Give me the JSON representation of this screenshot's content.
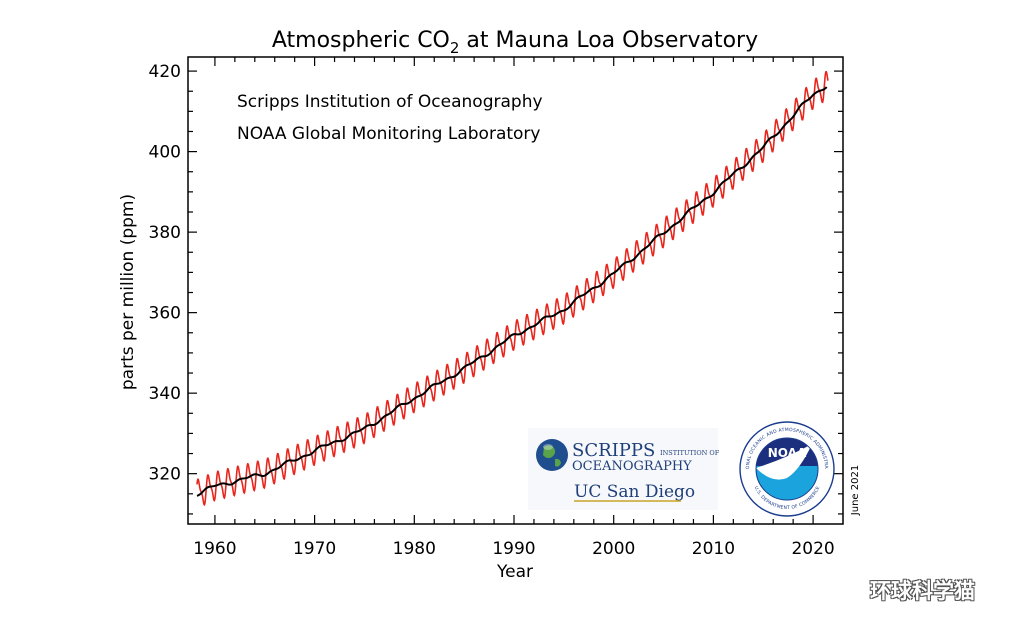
{
  "chart_data": {
    "type": "line",
    "title_prefix": "Atmospheric CO",
    "title_subscript": "2",
    "title_suffix": " at Mauna Loa Observatory",
    "xlabel": "Year",
    "ylabel": "parts per million (ppm)",
    "xlim": [
      1957.3,
      2023.0
    ],
    "ylim": [
      307.5,
      423.5
    ],
    "x_ticks": [
      1960,
      1970,
      1980,
      1990,
      2000,
      2010,
      2020
    ],
    "y_ticks": [
      320,
      340,
      360,
      380,
      400,
      420
    ],
    "grid": false,
    "series": [
      {
        "key": "monthly",
        "color": "#e8261d",
        "seasonal_amplitude_ppm": 3.0,
        "x_range": [
          1958.2,
          2021.5
        ]
      },
      {
        "key": "trend",
        "color": "#000000",
        "x": [
          1958.2,
          1960,
          1965,
          1970,
          1975,
          1980,
          1985,
          1990,
          1995,
          2000,
          2005,
          2010,
          2015,
          2020,
          2021.4
        ],
        "y": [
          315.0,
          316.9,
          320.0,
          325.7,
          331.1,
          338.8,
          346.1,
          354.3,
          360.8,
          369.7,
          379.8,
          389.9,
          401.0,
          414.2,
          416.5
        ]
      }
    ],
    "annotations": [
      "Scripps Institution of Oceanography",
      "NOAA Global Monitoring Laboratory"
    ],
    "date_note": "June 2021"
  },
  "logos": {
    "scripps_line1": "SCRIPPS",
    "scripps_line1_small": "INSTITUTION OF",
    "scripps_line2": "OCEANOGRAPHY",
    "ucsd": "UC San Diego",
    "noaa_center": "NOAA",
    "noaa_ring_top": "NATIONAL OCEANIC AND ATMOSPHERIC ADMINISTRATION",
    "noaa_ring_bottom": "U.S. DEPARTMENT OF COMMERCE"
  },
  "watermark": "环球科学猫"
}
